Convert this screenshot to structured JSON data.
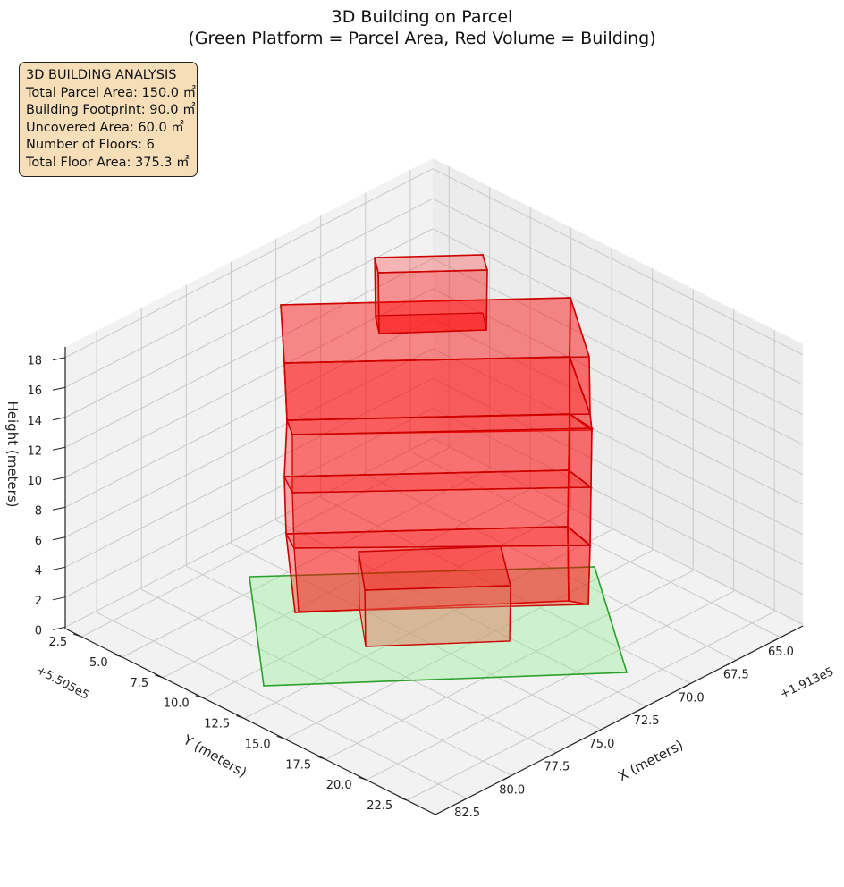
{
  "chart_data": {
    "type": "3d-polycollection",
    "title": "3D Building on Parcel",
    "subtitle": "(Green Platform = Parcel Area, Red Volume = Building)",
    "xlabel": "X (meters)",
    "ylabel": "Y (meters)",
    "zlabel": "Height (meters)",
    "x_offset_label": "+1.913e5",
    "y_offset_label": "+5.505e5",
    "x_ticks": [
      "65.0",
      "67.5",
      "70.0",
      "72.5",
      "75.0",
      "77.5",
      "80.0",
      "82.5"
    ],
    "y_ticks": [
      "2.5",
      "5.0",
      "7.5",
      "10.0",
      "12.5",
      "15.0",
      "17.5",
      "20.0",
      "22.5"
    ],
    "z_ticks": [
      "0",
      "2",
      "4",
      "6",
      "8",
      "10",
      "12",
      "14",
      "16",
      "18"
    ],
    "grid": true,
    "parcel_color": "#90ee90",
    "parcel_edge_color": "#2ca02c",
    "building_color": "#ff0000",
    "building_edge_color": "#cc0000",
    "panel_color": "#f2f2f2",
    "info": {
      "heading": "3D BUILDING ANALYSIS",
      "parcel_area": "Total Parcel Area: 150.0 ㎡",
      "footprint": "Building Footprint: 90.0 ㎡",
      "uncovered": "Uncovered Area: 60.0 ㎡",
      "floors": "Number of Floors: 6",
      "floor_area": "Total Floor Area: 375.3 ㎡"
    }
  }
}
